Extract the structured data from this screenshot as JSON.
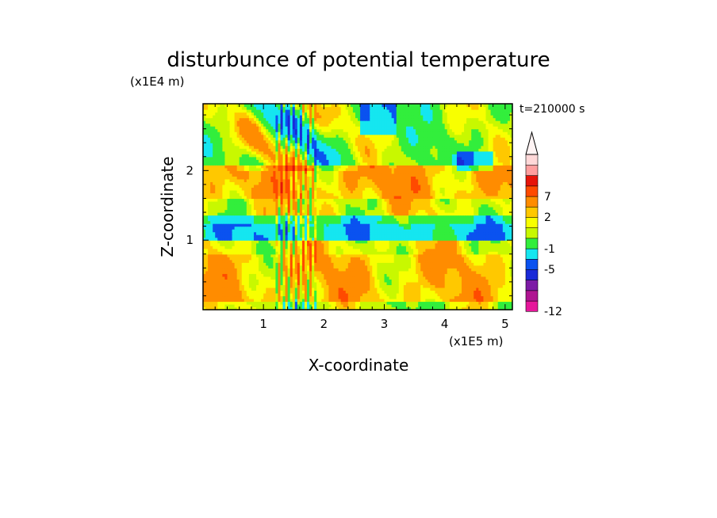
{
  "chart_data": {
    "type": "heatmap",
    "title": "disturbunce of potential temperature",
    "xlabel": "X-coordinate",
    "ylabel": "Z-coordinate",
    "x_unit": "(x1E5 m)",
    "y_unit": "(x1E4 m)",
    "time_label": "t=210000 s",
    "xlim": [
      0,
      5.12
    ],
    "ylim": [
      0,
      2.96
    ],
    "x_ticks": [
      1,
      2,
      3,
      4,
      5
    ],
    "y_ticks": [
      1,
      2
    ],
    "x_tick_labels": [
      "1",
      "2",
      "3",
      "4",
      "5"
    ],
    "y_tick_labels": [
      "1",
      "2"
    ],
    "colorbar": {
      "levels": [
        -12,
        -11,
        -9,
        -7,
        -5,
        -3,
        -1,
        0,
        1,
        2,
        4,
        7,
        9,
        11
      ],
      "labeled": [
        -12,
        -5,
        -1,
        2,
        7
      ],
      "labels": [
        "-12",
        "-5",
        "-1",
        "2",
        "7"
      ],
      "colors": [
        "#e6179b",
        "#b01592",
        "#7d1ba6",
        "#1a2ad8",
        "#0a52f0",
        "#15e6f0",
        "#32ee3c",
        "#c8f800",
        "#f8ff00",
        "#ffc800",
        "#ff8c00",
        "#ff4a00",
        "#e6140a",
        "#ff9e9e",
        "#ffd8d8"
      ],
      "extend": "max"
    },
    "field": {
      "nx": 128,
      "nz": 74,
      "description_bands": [
        {
          "z": [
            0.0,
            0.12
          ],
          "value": -0.5
        },
        {
          "z": [
            0.12,
            0.45
          ],
          "value": 1.5
        },
        {
          "z": [
            0.45,
            0.8
          ],
          "value": 1.5
        },
        {
          "z": [
            0.8,
            1.0
          ],
          "value": 0.5
        },
        {
          "z": [
            1.0,
            1.25
          ],
          "value": -2.5
        },
        {
          "z": [
            1.25,
            1.35
          ],
          "value": -1
        },
        {
          "z": [
            1.35,
            1.6
          ],
          "value": 0.5
        },
        {
          "z": [
            1.6,
            2.1
          ],
          "value": 2
        },
        {
          "z": [
            2.1,
            2.96
          ],
          "value": -1
        }
      ]
    }
  }
}
